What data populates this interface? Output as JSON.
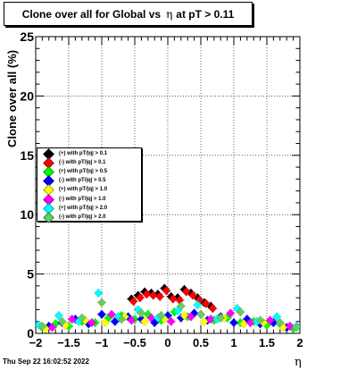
{
  "title": {
    "prefix": "Clone  over all for Global vs",
    "eta": "η",
    "suffix": "at pT > 0.11"
  },
  "timestamp": "Thu Sep 22 16:02:52 2022",
  "chart_data": {
    "type": "scatter",
    "xlabel": "η",
    "ylabel": "Clone  over all (%)",
    "xlim": [
      -2,
      2
    ],
    "ylim": [
      0,
      25
    ],
    "x_ticks": [
      "−2",
      "−1.5",
      "−1",
      "−0.5",
      "0",
      "0.5",
      "1",
      "1.5",
      "2"
    ],
    "y_ticks": [
      "0",
      "5",
      "10",
      "15",
      "20",
      "25"
    ],
    "grid": true,
    "legend_position": "middle-left",
    "series": [
      {
        "name": "(+) with pT/|q| > 0.1",
        "color": "#000000",
        "x": [
          -0.55,
          -0.45,
          -0.35,
          -0.25,
          -0.15,
          -0.05,
          0.05,
          0.15,
          0.25,
          0.35,
          0.45,
          0.55,
          0.65
        ],
        "y": [
          2.9,
          3.2,
          3.5,
          3.4,
          3.3,
          3.8,
          3.1,
          3.0,
          3.7,
          3.4,
          3.0,
          2.6,
          2.3
        ]
      },
      {
        "name": "(-) with pT/|q| > 0.1",
        "color": "#ff0000",
        "x": [
          -0.52,
          -0.42,
          -0.32,
          -0.22,
          -0.12,
          -0.02,
          0.08,
          0.18,
          0.28,
          0.38,
          0.48,
          0.58,
          0.68
        ],
        "y": [
          2.7,
          3.0,
          3.3,
          3.2,
          3.1,
          3.6,
          2.9,
          2.8,
          3.5,
          3.2,
          2.8,
          2.5,
          2.1
        ]
      },
      {
        "name": "(+) with pT/|q| > 0.5",
        "color": "#00ff00",
        "x": [
          -1.9,
          -1.7,
          -1.5,
          -1.3,
          -1.1,
          -0.9,
          -0.7,
          -0.5,
          -0.3,
          -0.1,
          0.1,
          0.3,
          0.5,
          0.7,
          0.9,
          1.1,
          1.3,
          1.5,
          1.7,
          1.9
        ],
        "y": [
          0.5,
          0.8,
          0.6,
          1.0,
          0.9,
          1.3,
          1.5,
          1.2,
          1.6,
          1.1,
          1.8,
          1.4,
          1.6,
          1.1,
          1.3,
          0.9,
          1.0,
          0.7,
          0.8,
          0.4
        ]
      },
      {
        "name": "(-) with pT/|q| > 0.5",
        "color": "#0000ff",
        "x": [
          -1.8,
          -1.6,
          -1.4,
          -1.2,
          -1.0,
          -0.8,
          -0.6,
          -0.4,
          -0.2,
          0.0,
          0.2,
          0.4,
          0.6,
          0.8,
          1.0,
          1.2,
          1.4,
          1.6,
          1.8
        ],
        "y": [
          0.6,
          0.9,
          1.2,
          0.8,
          1.6,
          1.0,
          1.4,
          1.2,
          0.9,
          1.5,
          1.3,
          1.7,
          1.1,
          1.4,
          0.9,
          1.2,
          0.8,
          0.9,
          0.5
        ]
      },
      {
        "name": "(+) with pT/|q| > 1.0",
        "color": "#ffff00",
        "x": [
          -1.85,
          -1.55,
          -1.25,
          -0.95,
          -0.65,
          -0.35,
          -0.05,
          0.25,
          0.55,
          0.85,
          1.15,
          1.45,
          1.75
        ],
        "y": [
          0.4,
          0.7,
          1.1,
          0.9,
          1.4,
          1.0,
          1.2,
          1.5,
          1.0,
          1.3,
          0.8,
          0.9,
          0.5
        ]
      },
      {
        "name": "(-) with pT/|q| > 1.0",
        "color": "#ff00ff",
        "x": [
          -1.75,
          -1.45,
          -1.15,
          -0.85,
          -0.55,
          -0.25,
          0.05,
          0.35,
          0.65,
          0.95,
          1.25,
          1.55,
          1.85
        ],
        "y": [
          0.5,
          1.2,
          0.9,
          1.6,
          1.1,
          1.3,
          1.0,
          1.4,
          1.2,
          1.7,
          0.9,
          1.1,
          0.6
        ]
      },
      {
        "name": "(+) with pT/|q| > 2.0",
        "color": "#00ffff",
        "x": [
          -1.95,
          -1.65,
          -1.35,
          -1.05,
          -0.75,
          -0.45,
          -0.15,
          0.15,
          0.45,
          0.75,
          1.05,
          1.35,
          1.65,
          1.95
        ],
        "y": [
          0.7,
          1.5,
          1.0,
          3.4,
          1.4,
          2.0,
          1.3,
          1.9,
          2.4,
          1.2,
          2.1,
          1.0,
          1.4,
          0.6
        ]
      },
      {
        "name": "(-) with pT/|q| > 2.0",
        "color": "#66cc66",
        "x": [
          -1.9,
          -1.6,
          -1.3,
          -1.0,
          -0.7,
          -0.4,
          -0.1,
          0.2,
          0.5,
          0.8,
          1.1,
          1.4,
          1.7,
          1.95
        ],
        "y": [
          0.6,
          1.0,
          1.3,
          2.6,
          1.2,
          1.7,
          1.5,
          2.3,
          1.6,
          1.3,
          1.8,
          1.1,
          0.9,
          0.5
        ]
      }
    ]
  }
}
